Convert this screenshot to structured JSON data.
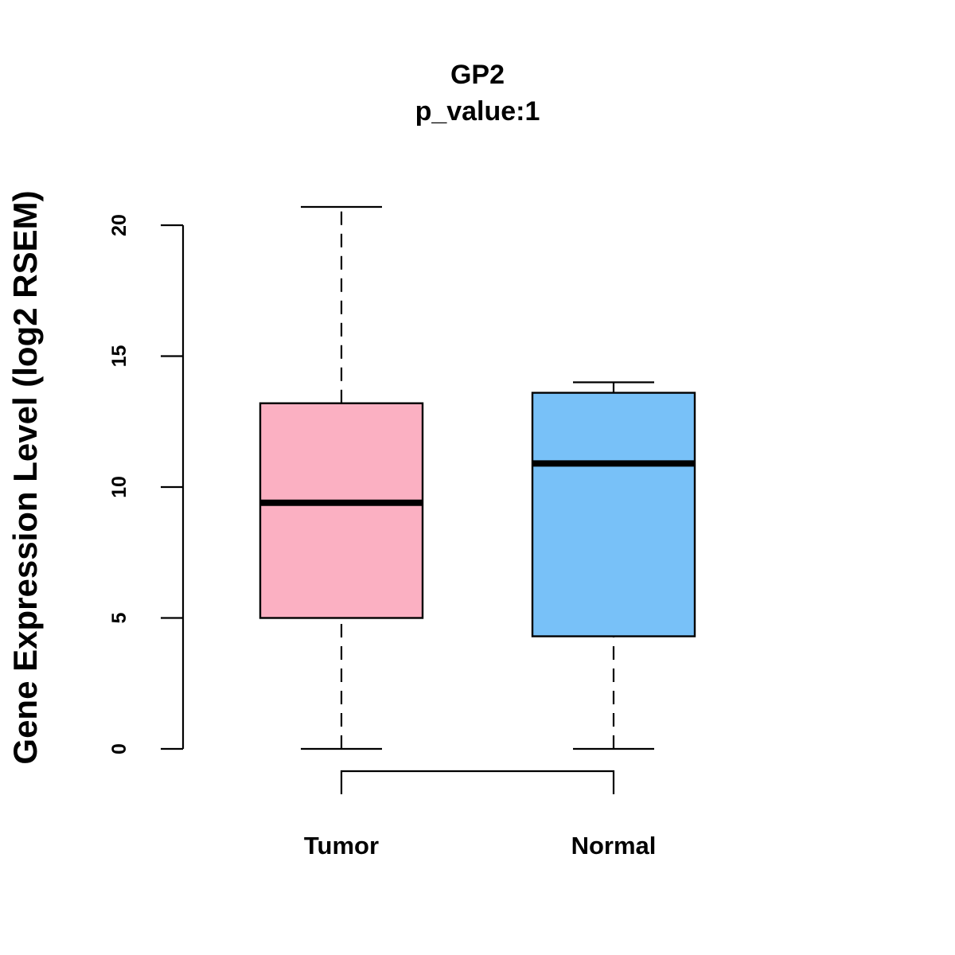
{
  "chart_data": {
    "type": "boxplot",
    "title": "GP2",
    "subtitle": "p_value:1",
    "xlabel": "",
    "ylabel": "Gene Expression Level (log2 RSEM)",
    "ylim": [
      0,
      20
    ],
    "yticks": [
      0,
      5,
      10,
      15,
      20
    ],
    "comparison_bracket": [
      "Tumor",
      "Normal"
    ],
    "categories": [
      "Tumor",
      "Normal"
    ],
    "series": [
      {
        "name": "Tumor",
        "min": 0,
        "q1": 5.0,
        "median": 9.4,
        "q3": 13.2,
        "max": 20.7,
        "color": "#fbb0c2"
      },
      {
        "name": "Normal",
        "min": 0,
        "q1": 4.3,
        "median": 10.9,
        "q3": 13.6,
        "max": 14.0,
        "color": "#78c1f8"
      }
    ]
  }
}
